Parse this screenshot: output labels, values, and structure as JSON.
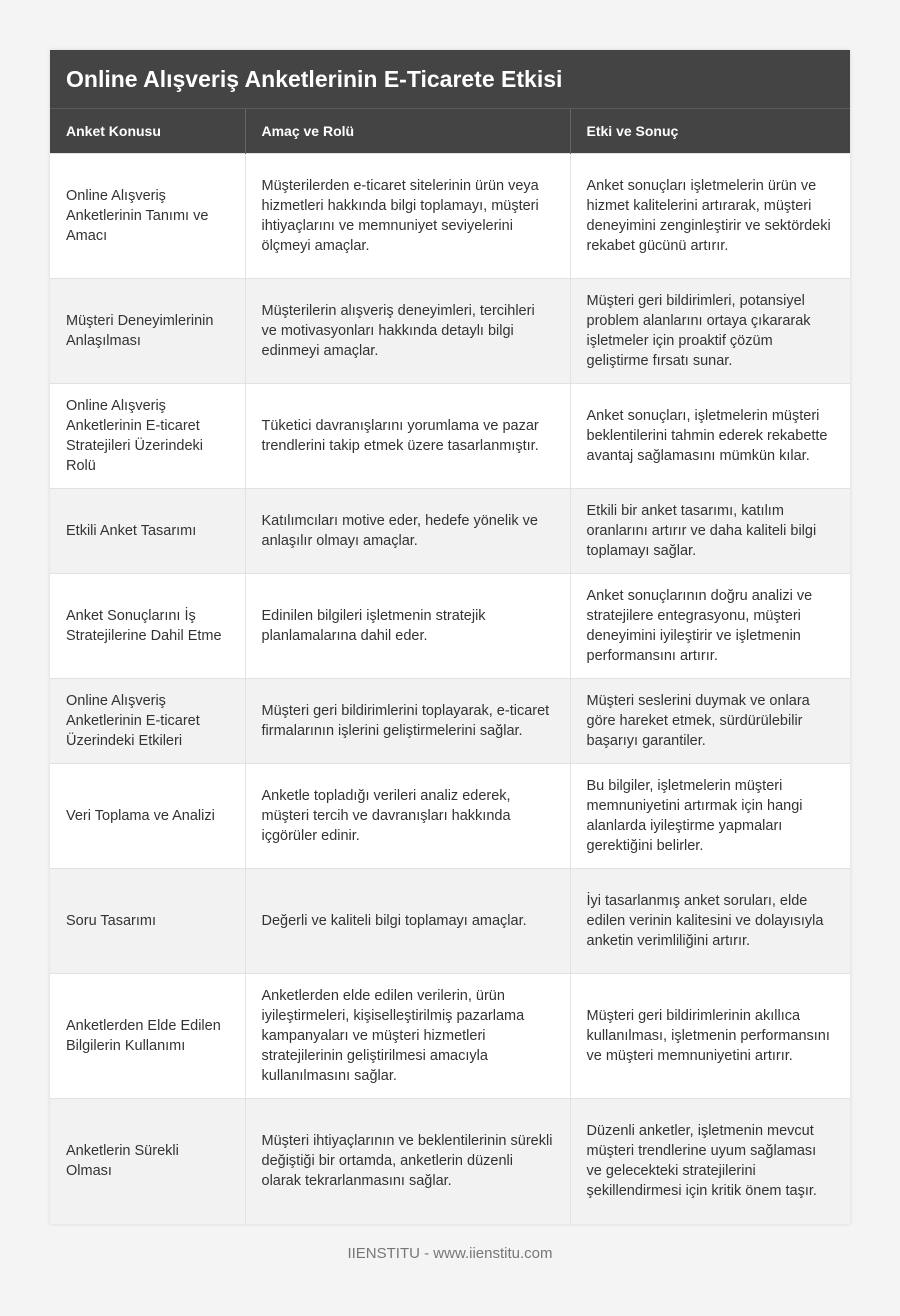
{
  "title": "Online Alışveriş Anketlerinin E-Ticarete Etkisi",
  "columns": [
    "Anket Konusu",
    "Amaç ve Rolü",
    "Etki ve Sonuç"
  ],
  "rows": [
    [
      "Online Alışveriş Anketlerinin Tanımı ve Amacı",
      "Müşterilerden e-ticaret sitelerinin ürün veya hizmetleri hakkında bilgi toplamayı, müşteri ihtiyaçlarını ve memnuniyet seviyelerini ölçmeyi amaçlar.",
      "Anket sonuçları işletmelerin ürün ve hizmet kalitelerini artırarak, müşteri deneyimini zenginleştirir ve sektördeki rekabet gücünü artırır."
    ],
    [
      "Müşteri Deneyimlerinin Anlaşılması",
      "Müşterilerin alışveriş deneyimleri, tercihleri ve motivasyonları hakkında detaylı bilgi edinmeyi amaçlar.",
      "Müşteri geri bildirimleri, potansiyel problem alanlarını ortaya çıkararak işletmeler için proaktif çözüm geliştirme fırsatı sunar."
    ],
    [
      "Online Alışveriş Anketlerinin E-ticaret Stratejileri Üzerindeki Rolü",
      "Tüketici davranışlarını yorumlama ve pazar trendlerini takip etmek üzere tasarlanmıştır.",
      "Anket sonuçları, işletmelerin müşteri beklentilerini tahmin ederek rekabette avantaj sağlamasını mümkün kılar."
    ],
    [
      "Etkili Anket Tasarımı",
      "Katılımcıları motive eder, hedefe yönelik ve anlaşılır olmayı amaçlar.",
      "Etkili bir anket tasarımı, katılım oranlarını artırır ve daha kaliteli bilgi toplamayı sağlar."
    ],
    [
      "Anket Sonuçlarını İş Stratejilerine Dahil Etme",
      "Edinilen bilgileri işletmenin stratejik planlamalarına dahil eder.",
      "Anket sonuçlarının doğru analizi ve stratejilere entegrasyonu, müşteri deneyimini iyileştirir ve işletmenin performansını artırır."
    ],
    [
      "Online Alışveriş Anketlerinin E-ticaret Üzerindeki Etkileri",
      "Müşteri geri bildirimlerini toplayarak, e-ticaret firmalarının işlerini geliştirmelerini sağlar.",
      "Müşteri seslerini duymak ve onlara göre hareket etmek, sürdürülebilir başarıyı garantiler."
    ],
    [
      "Veri Toplama ve Analizi",
      "Anketle topladığı verileri analiz ederek, müşteri tercih ve davranışları hakkında içgörüler edinir.",
      "Bu bilgiler, işletmelerin müşteri memnuniyetini artırmak için hangi alanlarda iyileştirme yapmaları gerektiğini belirler."
    ],
    [
      "Soru Tasarımı",
      "Değerli ve kaliteli bilgi toplamayı amaçlar.",
      "İyi tasarlanmış anket soruları, elde edilen verinin kalitesini ve dolayısıyla anketin verimliliğini artırır."
    ],
    [
      "Anketlerden Elde Edilen Bilgilerin Kullanımı",
      "Anketlerden elde edilen verilerin, ürün iyileştirmeleri, kişiselleştirilmiş pazarlama kampanyaları ve müşteri hizmetleri stratejilerinin geliştirilmesi amacıyla kullanılmasını sağlar.",
      "Müşteri geri bildirimlerinin akıllıca kullanılması, işletmenin performansını ve müşteri memnuniyetini artırır."
    ],
    [
      "Anketlerin Sürekli Olması",
      "Müşteri ihtiyaçlarının ve beklentilerinin sürekli değiştiği bir ortamda, anketlerin düzenli olarak tekrarlanmasını sağlar.",
      "Düzenli anketler, işletmenin mevcut müşteri trendlerine uyum sağlaması ve gelecekteki stratejilerini şekillendirmesi için kritik önem taşır."
    ]
  ],
  "footer": "IIENSTITU - www.iienstitu.com"
}
